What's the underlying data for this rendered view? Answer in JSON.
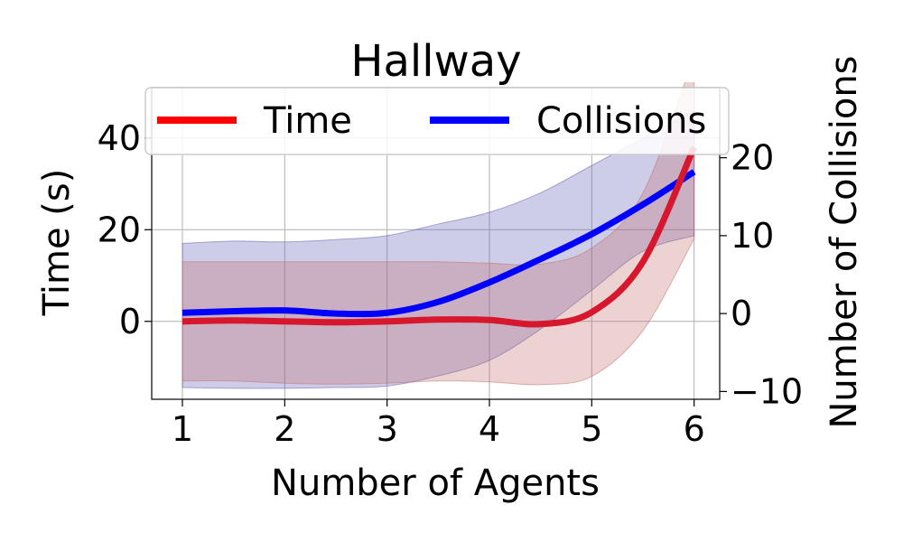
{
  "chart_data": {
    "type": "line",
    "title": "Hallway",
    "xlabel": "Number of Agents",
    "ylabel_left": "Time (s)",
    "ylabel_right": "Number of Collisions",
    "x": [
      1,
      1.5,
      2,
      2.5,
      3,
      3.5,
      4,
      4.5,
      5,
      5.5,
      6
    ],
    "xlim": [
      0.7,
      6.25
    ],
    "ylim_left": [
      -17,
      51
    ],
    "ylim_right": [
      -11,
      29
    ],
    "xticks": [
      1,
      2,
      3,
      4,
      5,
      6
    ],
    "yticks_left": [
      0,
      20,
      40
    ],
    "yticks_right": [
      -10,
      0,
      10,
      20
    ],
    "grid": true,
    "legend_position": "top-center",
    "series": [
      {
        "name": "Time",
        "axis": "left",
        "color": "#ff0000",
        "values": [
          0,
          0.2,
          0,
          -0.2,
          0,
          0.4,
          0.3,
          -0.6,
          2,
          13,
          38
        ],
        "lower": [
          -13,
          -13,
          -13.5,
          -13.7,
          -13.5,
          -13,
          -13.2,
          -13.8,
          -12,
          -2,
          18
        ],
        "upper": [
          13,
          13,
          13,
          13,
          13,
          13,
          12.7,
          12.5,
          16,
          28,
          58
        ]
      },
      {
        "name": "Collisions",
        "axis": "right",
        "color": "#0000ff",
        "values": [
          0.1,
          0.3,
          0.4,
          0.0,
          0.1,
          1.5,
          4.0,
          7.0,
          10.2,
          14.0,
          18.2
        ],
        "lower": [
          -9.5,
          -9.6,
          -9.6,
          -9.5,
          -9.3,
          -8.0,
          -6.0,
          -2.0,
          3.0,
          8.0,
          10.0
        ],
        "upper": [
          9.0,
          9.3,
          9.2,
          9.5,
          10.0,
          11.5,
          13.0,
          15.5,
          19.0,
          22.5,
          26.0
        ]
      }
    ]
  }
}
